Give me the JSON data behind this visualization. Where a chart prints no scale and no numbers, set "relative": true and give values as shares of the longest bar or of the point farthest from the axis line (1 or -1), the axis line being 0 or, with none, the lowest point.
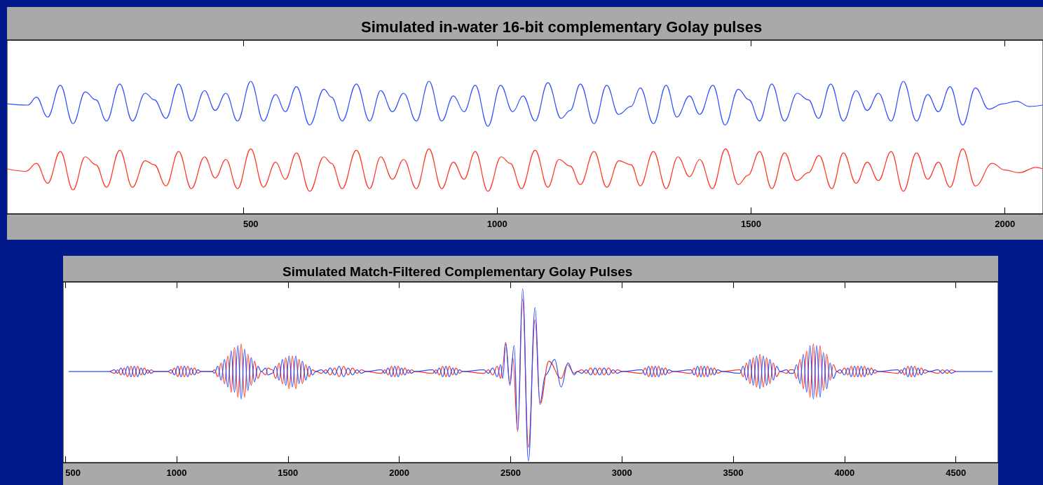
{
  "chart_data": [
    {
      "type": "line",
      "title": "Simulated in-water 16-bit complementary Golay pulses",
      "relative": true,
      "tick_labels": "x",
      "xlim": [
        35,
        2075
      ],
      "xticks": [
        500,
        1000,
        1500,
        2000
      ],
      "series": [
        {
          "color": "#2f4dff",
          "x": [
            35,
            76,
            93,
            115,
            140,
            165,
            189,
            210,
            231,
            257,
            282,
            307,
            325,
            348,
            373,
            398,
            424,
            445,
            466,
            489,
            515,
            540,
            564,
            583,
            605,
            631,
            659,
            674,
            695,
            723,
            749,
            771,
            794,
            816,
            841,
            866,
            891,
            914,
            935,
            957,
            982,
            1007,
            1031,
            1051,
            1075,
            1100,
            1126,
            1144,
            1164,
            1191,
            1216,
            1239,
            1264,
            1282,
            1308,
            1333,
            1354,
            1379,
            1399,
            1425,
            1449,
            1475,
            1496,
            1517,
            1541,
            1566,
            1591,
            1613,
            1633,
            1657,
            1682,
            1707,
            1729,
            1751,
            1776,
            1800,
            1826,
            1848,
            1869,
            1892,
            1917,
            1942,
            1968,
            1996,
            2023,
            2048,
            2074
          ],
          "values": [
            0.83,
            0.82,
            0.88,
            0.73,
            0.97,
            0.68,
            0.92,
            0.86,
            0.7,
            0.98,
            0.7,
            0.91,
            0.86,
            0.72,
            0.98,
            0.7,
            0.93,
            0.78,
            0.91,
            0.7,
            1.0,
            0.7,
            0.9,
            0.77,
            0.96,
            0.67,
            0.94,
            0.88,
            0.7,
            0.98,
            0.7,
            0.93,
            0.77,
            0.91,
            0.7,
            1.0,
            0.7,
            0.89,
            0.77,
            0.97,
            0.66,
            0.97,
            0.77,
            0.89,
            0.7,
            0.99,
            0.72,
            0.78,
            0.98,
            0.68,
            0.97,
            0.75,
            0.81,
            0.95,
            0.68,
            0.97,
            0.73,
            0.89,
            0.75,
            0.97,
            0.67,
            0.94,
            0.86,
            0.7,
            0.98,
            0.7,
            0.91,
            0.86,
            0.72,
            0.98,
            0.7,
            0.93,
            0.78,
            0.91,
            0.7,
            1.0,
            0.7,
            0.9,
            0.77,
            0.96,
            0.67,
            0.95,
            0.79,
            0.83,
            0.85,
            0.81,
            0.82
          ]
        },
        {
          "color": "#ff3322",
          "x": [
            35,
            72,
            93,
            115,
            140,
            165,
            189,
            210,
            231,
            257,
            282,
            307,
            325,
            348,
            373,
            398,
            424,
            445,
            466,
            489,
            515,
            540,
            564,
            583,
            605,
            631,
            659,
            674,
            695,
            723,
            749,
            771,
            794,
            816,
            841,
            866,
            891,
            914,
            935,
            957,
            982,
            1008,
            1026,
            1048,
            1075,
            1100,
            1122,
            1144,
            1164,
            1191,
            1216,
            1240,
            1264,
            1282,
            1308,
            1333,
            1356,
            1379,
            1399,
            1424,
            1450,
            1475,
            1494,
            1517,
            1541,
            1566,
            1590,
            1613,
            1634,
            1659,
            1682,
            1707,
            1729,
            1751,
            1776,
            1800,
            1826,
            1848,
            1869,
            1892,
            1917,
            1942,
            1975,
            2000,
            2028,
            2061,
            2074
          ],
          "values": [
            0.34,
            0.32,
            0.38,
            0.23,
            0.47,
            0.18,
            0.43,
            0.37,
            0.2,
            0.48,
            0.2,
            0.4,
            0.37,
            0.21,
            0.47,
            0.19,
            0.43,
            0.27,
            0.41,
            0.19,
            0.49,
            0.2,
            0.39,
            0.26,
            0.46,
            0.17,
            0.43,
            0.38,
            0.19,
            0.48,
            0.19,
            0.43,
            0.26,
            0.41,
            0.19,
            0.49,
            0.19,
            0.39,
            0.26,
            0.47,
            0.17,
            0.43,
            0.38,
            0.19,
            0.48,
            0.2,
            0.41,
            0.36,
            0.22,
            0.47,
            0.2,
            0.4,
            0.37,
            0.21,
            0.47,
            0.19,
            0.43,
            0.28,
            0.41,
            0.19,
            0.49,
            0.22,
            0.29,
            0.47,
            0.19,
            0.46,
            0.25,
            0.31,
            0.44,
            0.19,
            0.46,
            0.23,
            0.39,
            0.25,
            0.47,
            0.17,
            0.46,
            0.26,
            0.39,
            0.2,
            0.49,
            0.21,
            0.38,
            0.33,
            0.31,
            0.35,
            0.34
          ]
        }
      ]
    },
    {
      "type": "line",
      "title": "Simulated Match-Filtered Complementary Golay Pulses",
      "relative": true,
      "tick_labels": "x",
      "xlim": [
        490,
        4690
      ],
      "xticks": [
        500,
        1000,
        1500,
        2000,
        2500,
        3000,
        3500,
        4000,
        4500
      ],
      "series": [
        {
          "color": "#ff3322",
          "x": [
            700,
            720,
            735,
            750,
            765,
            780,
            795,
            810,
            825,
            840,
            855,
            870,
            885,
            900,
            960,
            975,
            990,
            1005,
            1020,
            1035,
            1050,
            1065,
            1080,
            1095,
            1110,
            1160,
            1170,
            1185,
            1200,
            1215,
            1230,
            1245,
            1260,
            1275,
            1290,
            1305,
            1320,
            1335,
            1350,
            1365,
            1380,
            1400,
            1410,
            1430,
            1445,
            1460,
            1475,
            1490,
            1505,
            1520,
            1535,
            1550,
            1565,
            1580,
            1595,
            1610,
            1625,
            1650,
            1670,
            1690,
            1710,
            1730,
            1750,
            1770,
            1790,
            1810,
            1830,
            1850,
            1920,
            1935,
            1950,
            1965,
            1980,
            1995,
            2010,
            2025,
            2040,
            2055,
            2070,
            2150,
            2165,
            2180,
            2195,
            2210,
            2225,
            2240,
            2255,
            2270,
            2285,
            2380,
            2400,
            2420,
            2440,
            2455,
            2465,
            2478,
            2497,
            2510,
            2532,
            2554,
            2580,
            2610,
            2632,
            2672,
            2727,
            2755,
            2786,
            2800,
            2820,
            2840,
            2860,
            2880,
            2900,
            2920,
            2940,
            2960,
            2980,
            3000,
            3090,
            3105,
            3120,
            3135,
            3150,
            3165,
            3180,
            3195,
            3210,
            3230,
            3310,
            3325,
            3340,
            3355,
            3370,
            3385,
            3400,
            3415,
            3430,
            3450,
            3530,
            3545,
            3560,
            3575,
            3590,
            3605,
            3620,
            3635,
            3650,
            3665,
            3680,
            3695,
            3710,
            3740,
            3755,
            3770,
            3785,
            3800,
            3815,
            3830,
            3845,
            3860,
            3875,
            3890,
            3905,
            3920,
            3935,
            3950,
            3965,
            3980,
            4000,
            4015,
            4030,
            4045,
            4060,
            4075,
            4090,
            4105,
            4120,
            4135,
            4150,
            4240,
            4255,
            4270,
            4285,
            4300,
            4315,
            4330,
            4345,
            4360,
            4380,
            4420,
            4440,
            4460,
            4480,
            4500
          ],
          "values": [
            0.52,
            0.51,
            0.53,
            0.5,
            0.54,
            0.49,
            0.55,
            0.49,
            0.55,
            0.5,
            0.54,
            0.51,
            0.53,
            0.52,
            0.52,
            0.51,
            0.54,
            0.49,
            0.55,
            0.49,
            0.55,
            0.5,
            0.54,
            0.51,
            0.52,
            0.52,
            0.53,
            0.49,
            0.57,
            0.45,
            0.61,
            0.4,
            0.66,
            0.37,
            0.68,
            0.37,
            0.62,
            0.44,
            0.58,
            0.48,
            0.52,
            0.5,
            0.54,
            0.53,
            0.48,
            0.57,
            0.45,
            0.6,
            0.42,
            0.61,
            0.42,
            0.59,
            0.45,
            0.56,
            0.49,
            0.53,
            0.52,
            0.51,
            0.53,
            0.5,
            0.54,
            0.49,
            0.55,
            0.5,
            0.54,
            0.51,
            0.53,
            0.52,
            0.51,
            0.53,
            0.5,
            0.55,
            0.49,
            0.55,
            0.5,
            0.54,
            0.51,
            0.53,
            0.52,
            0.51,
            0.53,
            0.5,
            0.55,
            0.49,
            0.55,
            0.5,
            0.54,
            0.51,
            0.52,
            0.51,
            0.53,
            0.5,
            0.55,
            0.48,
            0.56,
            0.69,
            0.45,
            0.6,
            0.17,
            0.94,
            0.08,
            0.82,
            0.33,
            0.58,
            0.48,
            0.56,
            0.51,
            0.52,
            0.53,
            0.51,
            0.54,
            0.5,
            0.54,
            0.5,
            0.54,
            0.51,
            0.53,
            0.52,
            0.51,
            0.54,
            0.49,
            0.55,
            0.49,
            0.55,
            0.5,
            0.54,
            0.51,
            0.52,
            0.51,
            0.54,
            0.49,
            0.55,
            0.49,
            0.55,
            0.5,
            0.54,
            0.51,
            0.52,
            0.53,
            0.49,
            0.57,
            0.45,
            0.6,
            0.43,
            0.62,
            0.43,
            0.6,
            0.45,
            0.57,
            0.49,
            0.52,
            0.51,
            0.53,
            0.53,
            0.48,
            0.59,
            0.42,
            0.64,
            0.37,
            0.68,
            0.37,
            0.67,
            0.41,
            0.62,
            0.47,
            0.56,
            0.52,
            0.51,
            0.54,
            0.5,
            0.55,
            0.49,
            0.55,
            0.49,
            0.55,
            0.5,
            0.54,
            0.51,
            0.52,
            0.51,
            0.53,
            0.5,
            0.55,
            0.49,
            0.55,
            0.5,
            0.54,
            0.51,
            0.52,
            0.51,
            0.53,
            0.51,
            0.53,
            0.52
          ]
        },
        {
          "color": "#2f4dff",
          "x": [
            515,
            700,
            720,
            735,
            750,
            765,
            780,
            795,
            810,
            825,
            840,
            855,
            870,
            885,
            900,
            960,
            975,
            990,
            1005,
            1020,
            1035,
            1050,
            1065,
            1080,
            1095,
            1110,
            1160,
            1170,
            1185,
            1200,
            1215,
            1230,
            1245,
            1260,
            1275,
            1290,
            1305,
            1320,
            1335,
            1350,
            1365,
            1380,
            1400,
            1410,
            1430,
            1445,
            1460,
            1475,
            1490,
            1505,
            1520,
            1535,
            1550,
            1565,
            1580,
            1595,
            1610,
            1625,
            1650,
            1670,
            1690,
            1710,
            1730,
            1750,
            1770,
            1790,
            1810,
            1830,
            1850,
            1920,
            1935,
            1950,
            1965,
            1980,
            1995,
            2010,
            2025,
            2040,
            2055,
            2070,
            2150,
            2165,
            2180,
            2195,
            2210,
            2225,
            2240,
            2255,
            2270,
            2285,
            2380,
            2400,
            2420,
            2440,
            2455,
            2465,
            2478,
            2497,
            2516,
            2532,
            2554,
            2580,
            2610,
            2632,
            2657,
            2698,
            2727,
            2758,
            2786,
            2800,
            2820,
            2840,
            2860,
            2880,
            2900,
            2920,
            2940,
            2960,
            2980,
            3000,
            3090,
            3105,
            3120,
            3135,
            3150,
            3165,
            3180,
            3195,
            3210,
            3230,
            3310,
            3325,
            3340,
            3355,
            3370,
            3385,
            3400,
            3415,
            3430,
            3450,
            3530,
            3545,
            3560,
            3575,
            3590,
            3605,
            3620,
            3635,
            3650,
            3665,
            3680,
            3695,
            3710,
            3740,
            3755,
            3770,
            3785,
            3800,
            3815,
            3830,
            3845,
            3860,
            3875,
            3890,
            3905,
            3920,
            3935,
            3950,
            3965,
            3980,
            4000,
            4015,
            4030,
            4045,
            4060,
            4075,
            4090,
            4105,
            4120,
            4135,
            4150,
            4240,
            4255,
            4270,
            4285,
            4300,
            4315,
            4330,
            4345,
            4360,
            4380,
            4420,
            4440,
            4460,
            4480,
            4500,
            4665
          ],
          "values": [
            0.52,
            0.52,
            0.53,
            0.51,
            0.54,
            0.5,
            0.55,
            0.49,
            0.55,
            0.49,
            0.54,
            0.5,
            0.53,
            0.51,
            0.52,
            0.52,
            0.53,
            0.5,
            0.55,
            0.49,
            0.55,
            0.49,
            0.54,
            0.5,
            0.53,
            0.52,
            0.52,
            0.51,
            0.55,
            0.47,
            0.59,
            0.43,
            0.64,
            0.4,
            0.67,
            0.36,
            0.65,
            0.41,
            0.6,
            0.46,
            0.55,
            0.52,
            0.54,
            0.5,
            0.51,
            0.55,
            0.47,
            0.59,
            0.44,
            0.61,
            0.43,
            0.61,
            0.45,
            0.58,
            0.47,
            0.55,
            0.5,
            0.52,
            0.53,
            0.51,
            0.54,
            0.5,
            0.55,
            0.49,
            0.54,
            0.5,
            0.53,
            0.51,
            0.52,
            0.53,
            0.51,
            0.54,
            0.49,
            0.55,
            0.49,
            0.54,
            0.5,
            0.53,
            0.51,
            0.52,
            0.53,
            0.51,
            0.54,
            0.49,
            0.55,
            0.49,
            0.54,
            0.5,
            0.53,
            0.52,
            0.53,
            0.51,
            0.54,
            0.49,
            0.56,
            0.48,
            0.68,
            0.44,
            0.67,
            0.18,
            1.0,
            0,
            0.89,
            0.34,
            0.5,
            0.59,
            0.43,
            0.57,
            0.5,
            0.52,
            0.51,
            0.53,
            0.5,
            0.54,
            0.5,
            0.54,
            0.5,
            0.53,
            0.51,
            0.52,
            0.53,
            0.5,
            0.55,
            0.49,
            0.55,
            0.49,
            0.54,
            0.5,
            0.53,
            0.52,
            0.53,
            0.5,
            0.55,
            0.49,
            0.55,
            0.49,
            0.54,
            0.5,
            0.53,
            0.52,
            0.51,
            0.55,
            0.47,
            0.59,
            0.44,
            0.61,
            0.42,
            0.61,
            0.44,
            0.59,
            0.47,
            0.55,
            0.52,
            0.53,
            0.51,
            0.51,
            0.56,
            0.45,
            0.62,
            0.4,
            0.67,
            0.36,
            0.67,
            0.37,
            0.63,
            0.42,
            0.57,
            0.48,
            0.52,
            0.53,
            0.5,
            0.54,
            0.49,
            0.55,
            0.49,
            0.55,
            0.49,
            0.54,
            0.5,
            0.53,
            0.52,
            0.53,
            0.51,
            0.54,
            0.49,
            0.55,
            0.49,
            0.54,
            0.5,
            0.53,
            0.52,
            0.53,
            0.51,
            0.53,
            0.51,
            0.52,
            0.52
          ]
        }
      ]
    }
  ]
}
